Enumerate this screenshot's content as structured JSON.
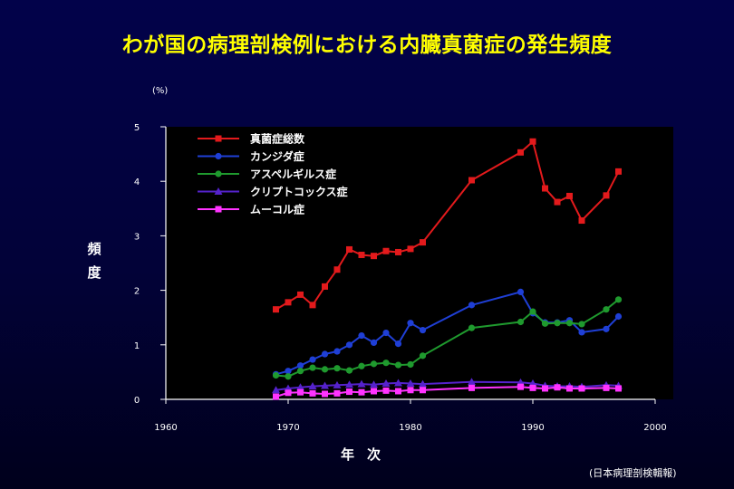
{
  "page": {
    "title": "わが国の病理剖検例における内臓真菌症の発生頻度",
    "unit": "(%)",
    "ylabel": "頻度",
    "xlabel": "年次",
    "source": "(日本病理剖検輯報)"
  },
  "chart_data": {
    "type": "line",
    "title": "わが国の病理剖検例における内臓真菌症の発生頻度",
    "xlabel": "年次",
    "ylabel": "頻度",
    "xlim": [
      1960,
      2000
    ],
    "ylim": [
      0,
      5
    ],
    "xticks": [
      1960,
      1970,
      1980,
      1990,
      2000
    ],
    "yticks": [
      0,
      1,
      2,
      3,
      4,
      5
    ],
    "grid": false,
    "legend_position": "top-left",
    "series": [
      {
        "name": "真菌症総数",
        "color": "#e31a1c",
        "marker": "square",
        "points": [
          [
            1969,
            1.65
          ],
          [
            1970,
            1.78
          ],
          [
            1971,
            1.92
          ],
          [
            1972,
            1.73
          ],
          [
            1973,
            2.07
          ],
          [
            1974,
            2.38
          ],
          [
            1975,
            2.75
          ],
          [
            1976,
            2.65
          ],
          [
            1977,
            2.63
          ],
          [
            1978,
            2.72
          ],
          [
            1979,
            2.7
          ],
          [
            1980,
            2.76
          ],
          [
            1981,
            2.88
          ],
          [
            1985,
            4.02
          ],
          [
            1989,
            4.53
          ],
          [
            1990,
            4.73
          ],
          [
            1991,
            3.87
          ],
          [
            1992,
            3.62
          ],
          [
            1993,
            3.73
          ],
          [
            1994,
            3.28
          ],
          [
            1996,
            3.74
          ],
          [
            1997,
            4.18
          ]
        ]
      },
      {
        "name": "カンジダ症",
        "color": "#1f3fd6",
        "marker": "circle",
        "points": [
          [
            1969,
            0.46
          ],
          [
            1970,
            0.52
          ],
          [
            1971,
            0.62
          ],
          [
            1972,
            0.73
          ],
          [
            1973,
            0.83
          ],
          [
            1974,
            0.88
          ],
          [
            1975,
            1.0
          ],
          [
            1976,
            1.17
          ],
          [
            1977,
            1.04
          ],
          [
            1978,
            1.22
          ],
          [
            1979,
            1.02
          ],
          [
            1980,
            1.4
          ],
          [
            1981,
            1.27
          ],
          [
            1985,
            1.73
          ],
          [
            1989,
            1.97
          ],
          [
            1990,
            1.58
          ],
          [
            1991,
            1.41
          ],
          [
            1992,
            1.41
          ],
          [
            1993,
            1.45
          ],
          [
            1994,
            1.23
          ],
          [
            1996,
            1.29
          ],
          [
            1997,
            1.52
          ]
        ]
      },
      {
        "name": "アスペルギルス症",
        "color": "#1f9a2e",
        "marker": "circle",
        "points": [
          [
            1969,
            0.44
          ],
          [
            1970,
            0.42
          ],
          [
            1971,
            0.52
          ],
          [
            1972,
            0.58
          ],
          [
            1973,
            0.55
          ],
          [
            1974,
            0.57
          ],
          [
            1975,
            0.53
          ],
          [
            1976,
            0.61
          ],
          [
            1977,
            0.65
          ],
          [
            1978,
            0.67
          ],
          [
            1979,
            0.63
          ],
          [
            1980,
            0.64
          ],
          [
            1981,
            0.8
          ],
          [
            1985,
            1.31
          ],
          [
            1989,
            1.42
          ],
          [
            1990,
            1.61
          ],
          [
            1991,
            1.39
          ],
          [
            1992,
            1.4
          ],
          [
            1993,
            1.4
          ],
          [
            1994,
            1.38
          ],
          [
            1996,
            1.65
          ],
          [
            1997,
            1.83
          ]
        ]
      },
      {
        "name": "クリプトコックス症",
        "color": "#5522cc",
        "marker": "triangle",
        "points": [
          [
            1969,
            0.17
          ],
          [
            1970,
            0.2
          ],
          [
            1971,
            0.22
          ],
          [
            1972,
            0.24
          ],
          [
            1973,
            0.25
          ],
          [
            1974,
            0.26
          ],
          [
            1975,
            0.27
          ],
          [
            1976,
            0.28
          ],
          [
            1977,
            0.27
          ],
          [
            1978,
            0.29
          ],
          [
            1979,
            0.3
          ],
          [
            1980,
            0.29
          ],
          [
            1981,
            0.28
          ],
          [
            1985,
            0.32
          ],
          [
            1989,
            0.31
          ],
          [
            1990,
            0.29
          ],
          [
            1991,
            0.25
          ],
          [
            1992,
            0.24
          ],
          [
            1993,
            0.24
          ],
          [
            1994,
            0.23
          ],
          [
            1996,
            0.26
          ],
          [
            1997,
            0.25
          ]
        ]
      },
      {
        "name": "ムーコル症",
        "color": "#ff33ff",
        "marker": "square",
        "points": [
          [
            1969,
            0.05
          ],
          [
            1970,
            0.12
          ],
          [
            1971,
            0.13
          ],
          [
            1972,
            0.11
          ],
          [
            1973,
            0.1
          ],
          [
            1974,
            0.11
          ],
          [
            1975,
            0.14
          ],
          [
            1976,
            0.13
          ],
          [
            1977,
            0.15
          ],
          [
            1978,
            0.16
          ],
          [
            1979,
            0.15
          ],
          [
            1980,
            0.17
          ],
          [
            1981,
            0.17
          ],
          [
            1985,
            0.21
          ],
          [
            1989,
            0.23
          ],
          [
            1990,
            0.21
          ],
          [
            1991,
            0.2
          ],
          [
            1992,
            0.22
          ],
          [
            1993,
            0.2
          ],
          [
            1994,
            0.2
          ],
          [
            1996,
            0.21
          ],
          [
            1997,
            0.2
          ]
        ]
      }
    ]
  }
}
